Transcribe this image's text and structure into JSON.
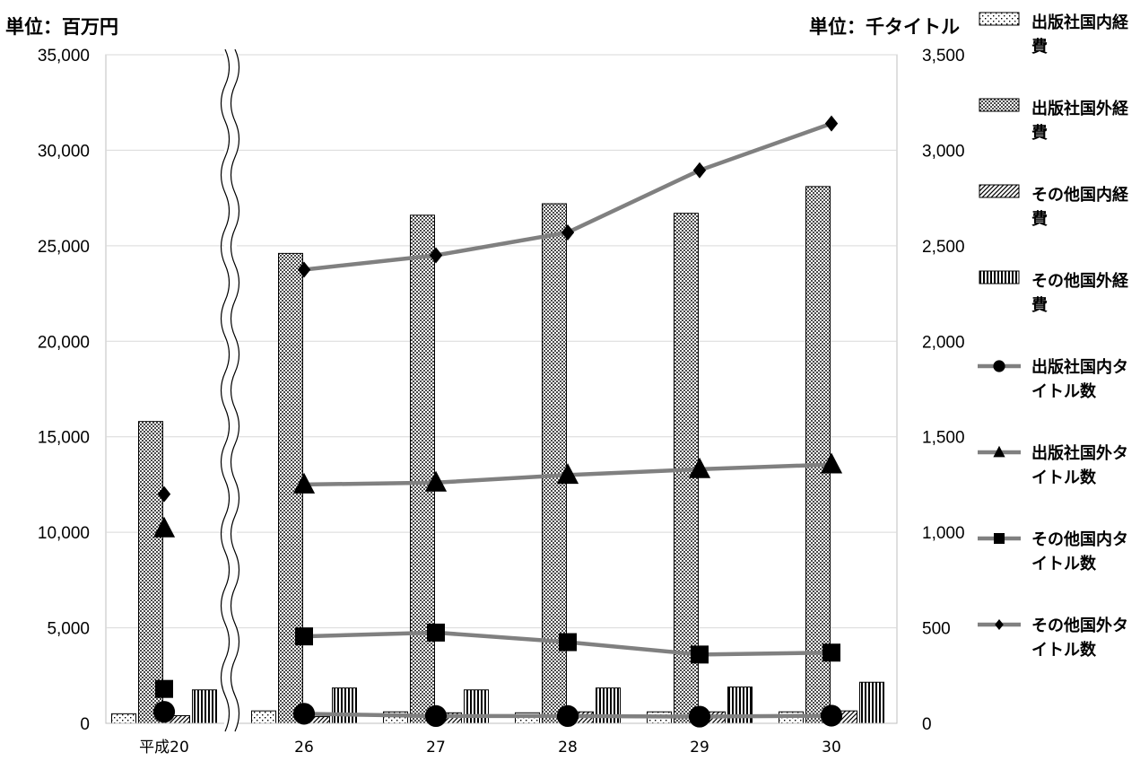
{
  "chart_data": {
    "type": "bar",
    "left_unit_label": "単位：百万円",
    "right_unit_label": "単位：千タイトル",
    "categories": [
      "平成20",
      "26",
      "27",
      "28",
      "29",
      "30"
    ],
    "left_axis": {
      "min": 0,
      "max": 35000,
      "step": 5000,
      "ticks": [
        "0",
        "5,000",
        "10,000",
        "15,000",
        "20,000",
        "25,000",
        "30,000",
        "35,000"
      ]
    },
    "right_axis": {
      "min": 0,
      "max": 3500,
      "step": 500,
      "ticks": [
        "0",
        "500",
        "1,000",
        "1,500",
        "2,000",
        "2,500",
        "3,000",
        "3,500"
      ]
    },
    "axis_break_after_category": "平成20",
    "grid": true,
    "legend_position": "right",
    "bar_series": [
      {
        "name": "出版社国内経費",
        "pattern": "dots",
        "values": [
          500,
          650,
          600,
          550,
          600,
          600
        ]
      },
      {
        "name": "出版社国外経費",
        "pattern": "crosshatch",
        "values": [
          15800,
          24600,
          26600,
          27200,
          26700,
          28100
        ]
      },
      {
        "name": "その他国内経費",
        "pattern": "diagonal",
        "values": [
          400,
          350,
          550,
          600,
          600,
          650
        ]
      },
      {
        "name": "その他国外経費",
        "pattern": "vertical",
        "values": [
          1750,
          1850,
          1750,
          1850,
          1900,
          2150
        ]
      }
    ],
    "line_series": [
      {
        "name": "出版社国内タイトル数",
        "marker": "circle",
        "values": [
          60,
          50,
          38,
          38,
          35,
          40
        ]
      },
      {
        "name": "出版社国外タイトル数",
        "marker": "triangle",
        "values": [
          1020,
          1250,
          1260,
          1300,
          1330,
          1355
        ]
      },
      {
        "name": "その他国内タイトル数",
        "marker": "square",
        "values": [
          180,
          455,
          475,
          425,
          360,
          370
        ]
      },
      {
        "name": "その他国外タイトル数",
        "marker": "diamond",
        "values": [
          1200,
          2375,
          2450,
          2570,
          2895,
          3140
        ]
      }
    ],
    "line_color": "#808080"
  }
}
